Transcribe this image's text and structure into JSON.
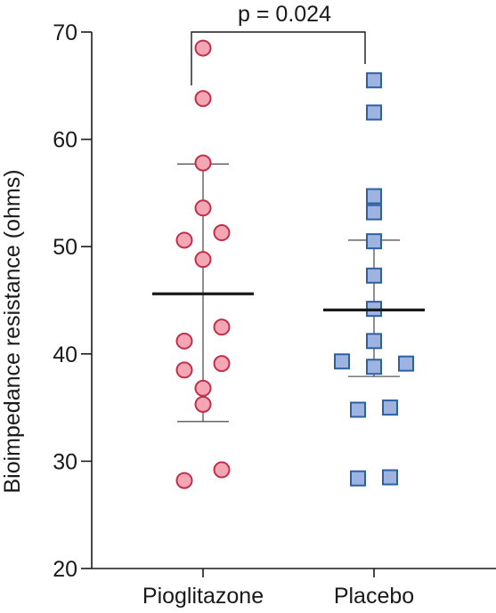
{
  "chart_data": {
    "type": "scatter",
    "title": "",
    "xlabel": "",
    "ylabel": "Bioimpedance resistance (ohms)",
    "ylim": [
      20,
      70
    ],
    "yticks": [
      20,
      30,
      40,
      50,
      60,
      70
    ],
    "grid": false,
    "categories": [
      "Pioglitazone",
      "Placebo"
    ],
    "annotation": "p = 0.024",
    "series": [
      {
        "marker": "circle",
        "color": "#f4a6b4",
        "edge": "#c0304a",
        "points": [
          {
            "offset": 0,
            "y": 68.5
          },
          {
            "offset": 0,
            "y": 63.8
          },
          {
            "offset": 0,
            "y": 57.8
          },
          {
            "offset": 0,
            "y": 53.6
          },
          {
            "offset": -1,
            "y": 50.6
          },
          {
            "offset": 1,
            "y": 51.3
          },
          {
            "offset": 0,
            "y": 48.8
          },
          {
            "offset": 1,
            "y": 42.5
          },
          {
            "offset": -1,
            "y": 41.2
          },
          {
            "offset": 1,
            "y": 39.1
          },
          {
            "offset": -1,
            "y": 38.5
          },
          {
            "offset": 0,
            "y": 36.8
          },
          {
            "offset": 0,
            "y": 35.3
          },
          {
            "offset": 1,
            "y": 29.2
          },
          {
            "offset": -1,
            "y": 28.2
          }
        ],
        "mean": 45.6,
        "sd_upper": 57.7,
        "sd_lower": 33.7
      },
      {
        "marker": "square",
        "color": "#9fb3e0",
        "edge": "#2c5fa3",
        "points": [
          {
            "offset": 0,
            "y": 65.5
          },
          {
            "offset": 0,
            "y": 62.5
          },
          {
            "offset": 0,
            "y": 54.7
          },
          {
            "offset": 0,
            "y": 53.2
          },
          {
            "offset": 0,
            "y": 50.5
          },
          {
            "offset": 0,
            "y": 47.3
          },
          {
            "offset": 0,
            "y": 44.2
          },
          {
            "offset": 0,
            "y": 41.2
          },
          {
            "offset": -2,
            "y": 39.3
          },
          {
            "offset": 2,
            "y": 39.1
          },
          {
            "offset": 0,
            "y": 38.8
          },
          {
            "offset": 1,
            "y": 35.0
          },
          {
            "offset": -1,
            "y": 34.8
          },
          {
            "offset": -1,
            "y": 28.4
          },
          {
            "offset": 1,
            "y": 28.5
          }
        ],
        "mean": 44.1,
        "sd_upper": 50.6,
        "sd_lower": 37.9
      }
    ]
  }
}
